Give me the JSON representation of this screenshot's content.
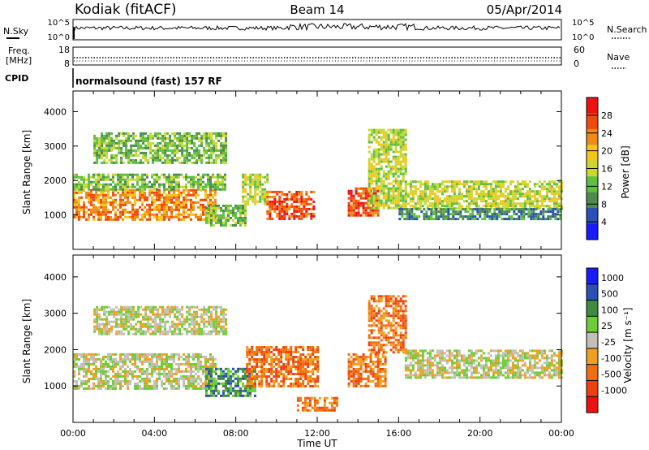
{
  "header": {
    "station": "Kodiak (fitACF)",
    "beam": "Beam 14",
    "date": "05/Apr/2014"
  },
  "panels": {
    "nsky": {
      "left_label": "N.Sky",
      "right_label": "N.Search",
      "left_ticks": [
        "10^5",
        "10^0"
      ],
      "right_ticks": [
        "10^5",
        "10^0"
      ]
    },
    "freq": {
      "left_label_1": "Freq.",
      "left_label_2": "[MHz]",
      "right_label": "Nave",
      "left_ticks": [
        "18",
        "8"
      ],
      "right_ticks": [
        "60",
        "0"
      ]
    },
    "cpid": {
      "label": "CPID",
      "text": "normalsound (fast) 157 RF"
    }
  },
  "colors": {
    "power_scale": [
      "#1a1aff",
      "#2a4fb5",
      "#4d8a4d",
      "#5fbf3f",
      "#c8d832",
      "#f5c518",
      "#f08a14",
      "#f04a0a",
      "#ee1111"
    ],
    "velocity_scale": [
      "#1a1aff",
      "#2a4fb5",
      "#3e8a3e",
      "#6ccd35",
      "#c0c0b8",
      "#f0a020",
      "#f07010",
      "#f04010",
      "#ee1111"
    ]
  },
  "chart_data": [
    {
      "type": "heatmap",
      "name": "power",
      "ylabel": "Slant Range [km]",
      "ylim": [
        0,
        4600
      ],
      "yticks": [
        "4000",
        "3000",
        "2000",
        "1000"
      ],
      "xlim": [
        "00:00",
        "24:00"
      ],
      "colorbar": {
        "label": "Power [dB]",
        "range": [
          0,
          32
        ],
        "ticks": [
          "28",
          "24",
          "20",
          "16",
          "12",
          "8",
          "4"
        ]
      },
      "echo_regions": [
        {
          "t0": 0.0,
          "t1": 7.0,
          "r0": 900,
          "r1": 1750,
          "level": 24
        },
        {
          "t0": 0.0,
          "t1": 7.5,
          "r0": 1750,
          "r1": 2200,
          "level": 10
        },
        {
          "t0": 6.5,
          "t1": 8.5,
          "r0": 700,
          "r1": 1300,
          "level": 12
        },
        {
          "t0": 8.3,
          "t1": 9.5,
          "r0": 1300,
          "r1": 2200,
          "level": 16
        },
        {
          "t0": 9.5,
          "t1": 11.8,
          "r0": 900,
          "r1": 1700,
          "level": 26
        },
        {
          "t0": 13.5,
          "t1": 15.0,
          "r0": 1000,
          "r1": 1800,
          "level": 26
        },
        {
          "t0": 14.5,
          "t1": 16.3,
          "r0": 1200,
          "r1": 3500,
          "level": 14
        },
        {
          "t0": 16.3,
          "t1": 24.0,
          "r0": 1200,
          "r1": 2000,
          "level": 16
        },
        {
          "t0": 16.0,
          "t1": 24.0,
          "r0": 900,
          "r1": 1200,
          "level": 8
        },
        {
          "t0": 1.0,
          "t1": 7.5,
          "r0": 2500,
          "r1": 3400,
          "level": 12
        }
      ]
    },
    {
      "type": "heatmap",
      "name": "velocity",
      "ylabel": "Slant Range [km]",
      "ylim": [
        0,
        4600
      ],
      "yticks": [
        "4000",
        "3000",
        "2000",
        "1000"
      ],
      "xlim": [
        "00:00",
        "24:00"
      ],
      "xlabel": "Time UT",
      "xticks": [
        "00:00",
        "04:00",
        "08:00",
        "12:00",
        "16:00",
        "20:00",
        "00:00"
      ],
      "colorbar": {
        "label": "Velocity [m s⁻¹]",
        "ticks": [
          "1000",
          "500",
          "100",
          "25",
          "-25",
          "-100",
          "-500",
          "-1000"
        ]
      },
      "echo_regions": [
        {
          "t0": 0.0,
          "t1": 7.0,
          "r0": 900,
          "r1": 1900,
          "level": 0
        },
        {
          "t0": 6.5,
          "t1": 9.0,
          "r0": 700,
          "r1": 1500,
          "level": 300
        },
        {
          "t0": 8.5,
          "t1": 12.0,
          "r0": 1000,
          "r1": 2100,
          "level": -150
        },
        {
          "t0": 11.0,
          "t1": 13.0,
          "r0": 350,
          "r1": 700,
          "level": -150
        },
        {
          "t0": 13.5,
          "t1": 15.3,
          "r0": 1000,
          "r1": 1900,
          "level": -150
        },
        {
          "t0": 14.5,
          "t1": 16.3,
          "r0": 1900,
          "r1": 3500,
          "level": -300
        },
        {
          "t0": 16.3,
          "t1": 24.0,
          "r0": 1200,
          "r1": 2000,
          "level": 0
        },
        {
          "t0": 1.0,
          "t1": 7.5,
          "r0": 2400,
          "r1": 3200,
          "level": 0
        }
      ]
    }
  ]
}
